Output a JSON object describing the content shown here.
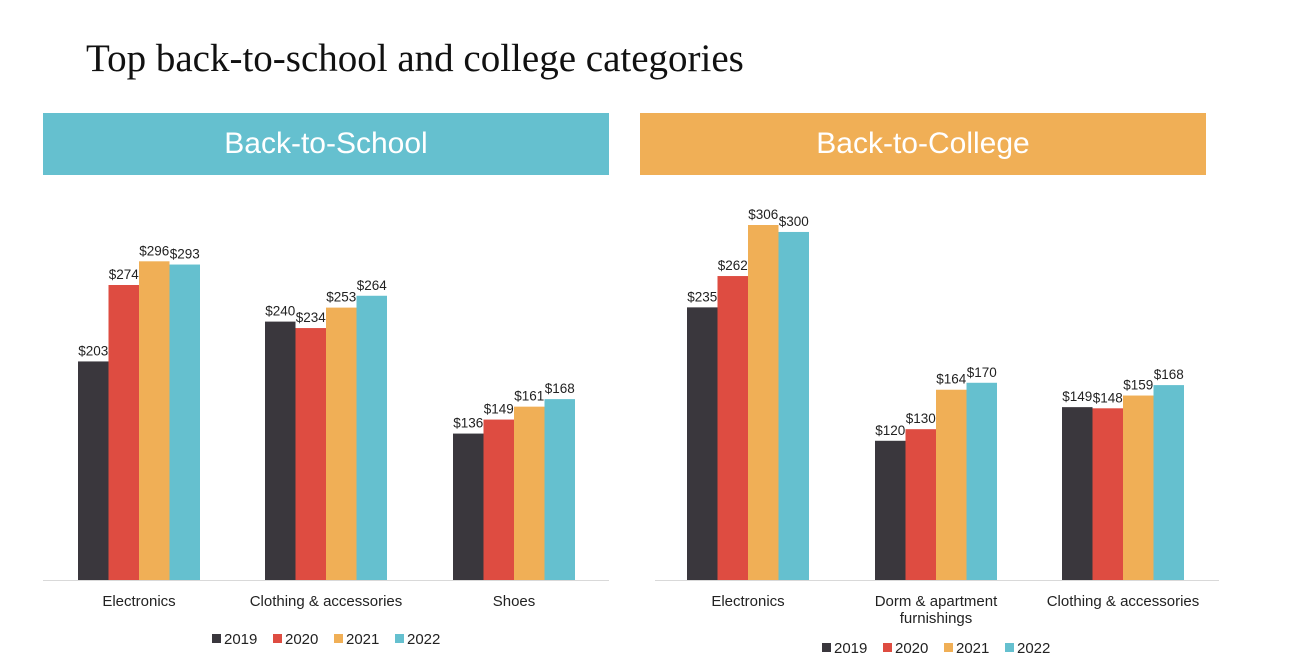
{
  "page": {
    "title": "Top back-to-school and college categories"
  },
  "colors": {
    "2019": "#3a373d",
    "2020": "#de4c41",
    "2021": "#f0af56",
    "2022": "#65c0cf",
    "school_header": "#65c0cf",
    "college_header": "#f0af56",
    "axis": "#d9d9d9"
  },
  "chart_data": [
    {
      "type": "bar",
      "title": "Back-to-School",
      "categories": [
        "Electronics",
        "Clothing & accessories",
        "Shoes"
      ],
      "series": [
        {
          "name": "2019",
          "values": [
            203,
            240,
            136
          ],
          "labels": [
            "$203",
            "$240",
            "$136"
          ]
        },
        {
          "name": "2020",
          "values": [
            274,
            234,
            149
          ],
          "labels": [
            "$274",
            "$234",
            "$149"
          ]
        },
        {
          "name": "2021",
          "values": [
            296,
            253,
            161
          ],
          "labels": [
            "$296",
            "$253",
            "$161"
          ]
        },
        {
          "name": "2022",
          "values": [
            293,
            264,
            168
          ],
          "labels": [
            "$293",
            "$264",
            "$168"
          ]
        }
      ],
      "ylim": [
        0,
        300
      ],
      "grid": false,
      "legend": "bottom"
    },
    {
      "type": "bar",
      "title": "Back-to-College",
      "categories": [
        "Electronics",
        "Dorm & apartment furnishings",
        "Clothing & accessories"
      ],
      "series": [
        {
          "name": "2019",
          "values": [
            235,
            120,
            149
          ],
          "labels": [
            "$235",
            "$120",
            "$149"
          ]
        },
        {
          "name": "2020",
          "values": [
            262,
            130,
            148
          ],
          "labels": [
            "$262",
            "$130",
            "$148"
          ]
        },
        {
          "name": "2021",
          "values": [
            306,
            164,
            159
          ],
          "labels": [
            "$306",
            "$164",
            "$159"
          ]
        },
        {
          "name": "2022",
          "values": [
            300,
            170,
            168
          ],
          "labels": [
            "$300",
            "$170",
            "$168"
          ]
        }
      ],
      "ylim": [
        0,
        310
      ],
      "grid": false,
      "legend": "bottom"
    }
  ]
}
